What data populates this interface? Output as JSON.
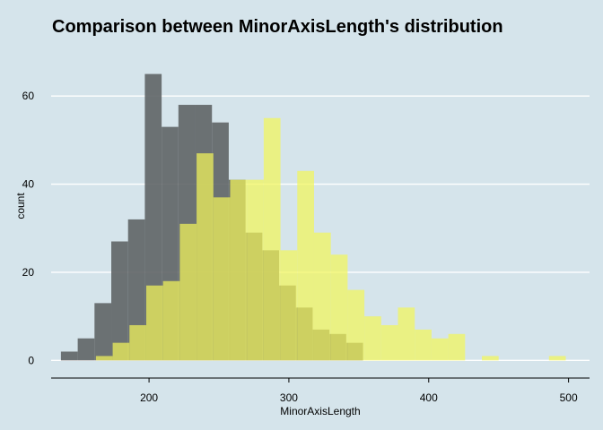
{
  "chart_data": {
    "type": "bar",
    "title": "Comparison between MinorAxisLength's distribution",
    "xlabel": "MinorAxisLength",
    "ylabel": "count",
    "xlim": [
      130,
      515
    ],
    "ylim": [
      -4,
      70
    ],
    "x_ticks": [
      200,
      300,
      400,
      500
    ],
    "y_ticks": [
      0,
      20,
      40,
      60
    ],
    "bin_width": 11.95,
    "grid": "horizontal",
    "legend": "none",
    "series": [
      {
        "color": "#5f6466",
        "opacity": 0.9,
        "bins": [
          {
            "x0": 137,
            "x1": 149,
            "count": 2
          },
          {
            "x0": 149,
            "x1": 161,
            "count": 5
          },
          {
            "x0": 161,
            "x1": 173,
            "count": 13
          },
          {
            "x0": 173,
            "x1": 185,
            "count": 27
          },
          {
            "x0": 185,
            "x1": 197,
            "count": 32
          },
          {
            "x0": 197,
            "x1": 209,
            "count": 65
          },
          {
            "x0": 209,
            "x1": 221,
            "count": 53
          },
          {
            "x0": 221,
            "x1": 233,
            "count": 58
          },
          {
            "x0": 233,
            "x1": 245,
            "count": 58
          },
          {
            "x0": 245,
            "x1": 257,
            "count": 54
          },
          {
            "x0": 257,
            "x1": 269,
            "count": 41
          },
          {
            "x0": 269,
            "x1": 281,
            "count": 29
          },
          {
            "x0": 281,
            "x1": 293,
            "count": 25
          },
          {
            "x0": 293,
            "x1": 305,
            "count": 17
          },
          {
            "x0": 305,
            "x1": 317,
            "count": 12
          },
          {
            "x0": 317,
            "x1": 329,
            "count": 7
          },
          {
            "x0": 329,
            "x1": 341,
            "count": 6
          },
          {
            "x0": 341,
            "x1": 353,
            "count": 4
          }
        ]
      },
      {
        "color": "#f2f55a",
        "opacity": 0.72,
        "bins": [
          {
            "x0": 162,
            "x1": 174,
            "count": 1
          },
          {
            "x0": 174,
            "x1": 186,
            "count": 4
          },
          {
            "x0": 186,
            "x1": 198,
            "count": 8
          },
          {
            "x0": 198,
            "x1": 210,
            "count": 17
          },
          {
            "x0": 210,
            "x1": 222,
            "count": 18
          },
          {
            "x0": 222,
            "x1": 234,
            "count": 31
          },
          {
            "x0": 234,
            "x1": 246,
            "count": 47
          },
          {
            "x0": 246,
            "x1": 258,
            "count": 37
          },
          {
            "x0": 258,
            "x1": 270,
            "count": 41
          },
          {
            "x0": 270,
            "x1": 282,
            "count": 41
          },
          {
            "x0": 282,
            "x1": 294,
            "count": 55
          },
          {
            "x0": 294,
            "x1": 306,
            "count": 25
          },
          {
            "x0": 306,
            "x1": 318,
            "count": 43
          },
          {
            "x0": 318,
            "x1": 330,
            "count": 29
          },
          {
            "x0": 330,
            "x1": 342,
            "count": 24
          },
          {
            "x0": 342,
            "x1": 354,
            "count": 16
          },
          {
            "x0": 354,
            "x1": 366,
            "count": 10
          },
          {
            "x0": 366,
            "x1": 378,
            "count": 8
          },
          {
            "x0": 378,
            "x1": 390,
            "count": 12
          },
          {
            "x0": 390,
            "x1": 402,
            "count": 7
          },
          {
            "x0": 402,
            "x1": 414,
            "count": 5
          },
          {
            "x0": 414,
            "x1": 426,
            "count": 6
          },
          {
            "x0": 438,
            "x1": 450,
            "count": 1
          },
          {
            "x0": 486,
            "x1": 498,
            "count": 1
          }
        ]
      }
    ]
  }
}
